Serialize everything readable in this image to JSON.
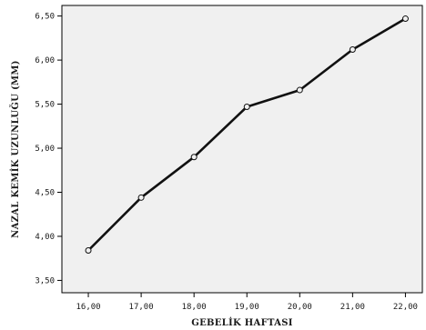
{
  "chart_data": {
    "type": "line",
    "title": "",
    "xlabel": "GEBELİK HAFTASI",
    "ylabel": "NAZAL KEMİK UZUNLUĞU (MM)",
    "x": [
      16,
      17,
      18,
      19,
      20,
      21,
      22
    ],
    "series": [
      {
        "values": [
          3.84,
          4.44,
          4.9,
          5.47,
          5.66,
          6.12,
          6.47
        ]
      }
    ],
    "xlim": [
      15.5,
      22.32
    ],
    "ylim": [
      3.36,
      6.62
    ],
    "x_ticks": [
      "16,00",
      "17,00",
      "18,00",
      "19,00",
      "20,00",
      "21,00",
      "22,00"
    ],
    "y_ticks": [
      "3,50",
      "4,00",
      "4,50",
      "5,00",
      "5,50",
      "6,00",
      "6,50"
    ],
    "y_tick_values": [
      3.5,
      4.0,
      4.5,
      5.0,
      5.5,
      6.0,
      6.5
    ],
    "grid": false,
    "legend": "none",
    "colors": {
      "plot_background": "#f0f0f0",
      "line": "#111111",
      "marker_edge": "#111111",
      "marker_fill": "#f0f0f0",
      "frame": "#000000"
    }
  }
}
